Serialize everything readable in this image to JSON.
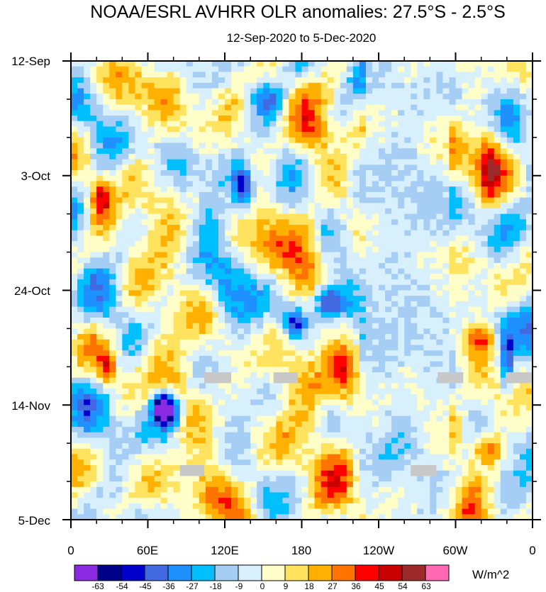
{
  "chart_data": {
    "type": "heatmap",
    "title": "NOAA/ESRL AVHRR OLR anomalies: 27.5°S - 2.5°S",
    "subtitle": "12-Sep-2020 to 5-Dec-2020",
    "xlabel": "",
    "ylabel": "",
    "x_ticks": [
      "0",
      "60E",
      "120E",
      "180",
      "120W",
      "60W",
      "0"
    ],
    "x_tick_degrees": [
      0,
      60,
      120,
      180,
      240,
      300,
      360
    ],
    "y_ticks": [
      "12-Sep",
      "3-Oct",
      "24-Oct",
      "14-Nov",
      "5-Dec"
    ],
    "y_tick_days": [
      0,
      21,
      42,
      63,
      84
    ],
    "xlim": [
      0,
      360
    ],
    "ylim_days": [
      0,
      84
    ],
    "colorbar": {
      "labels": [
        "-63",
        "-54",
        "-45",
        "-36",
        "-27",
        "-18",
        "-9",
        "0",
        "9",
        "18",
        "27",
        "36",
        "45",
        "54",
        "63"
      ],
      "colors": [
        "#8a2be2",
        "#00008b",
        "#0000cd",
        "#4169e1",
        "#1e90ff",
        "#00bfff",
        "#a6cef5",
        "#d7f0fc",
        "#fffdc8",
        "#ffe35f",
        "#ffb000",
        "#ff7300",
        "#ff0000",
        "#c80000",
        "#9c2a2a",
        "#ff69b4"
      ],
      "units": "W/m^2"
    },
    "missing_data_blocks": [
      {
        "lon_start": 104,
        "lon_end": 125,
        "day_start": 57,
        "day_end": 59
      },
      {
        "lon_start": 158,
        "lon_end": 177,
        "day_start": 57,
        "day_end": 59
      },
      {
        "lon_start": 286,
        "lon_end": 306,
        "day_start": 57,
        "day_end": 59
      },
      {
        "lon_start": 339,
        "lon_end": 360,
        "day_start": 57,
        "day_end": 59
      },
      {
        "lon_start": 85,
        "lon_end": 104,
        "day_start": 74,
        "day_end": 76
      },
      {
        "lon_start": 265,
        "lon_end": 285,
        "day_start": 74,
        "day_end": 76
      }
    ]
  }
}
